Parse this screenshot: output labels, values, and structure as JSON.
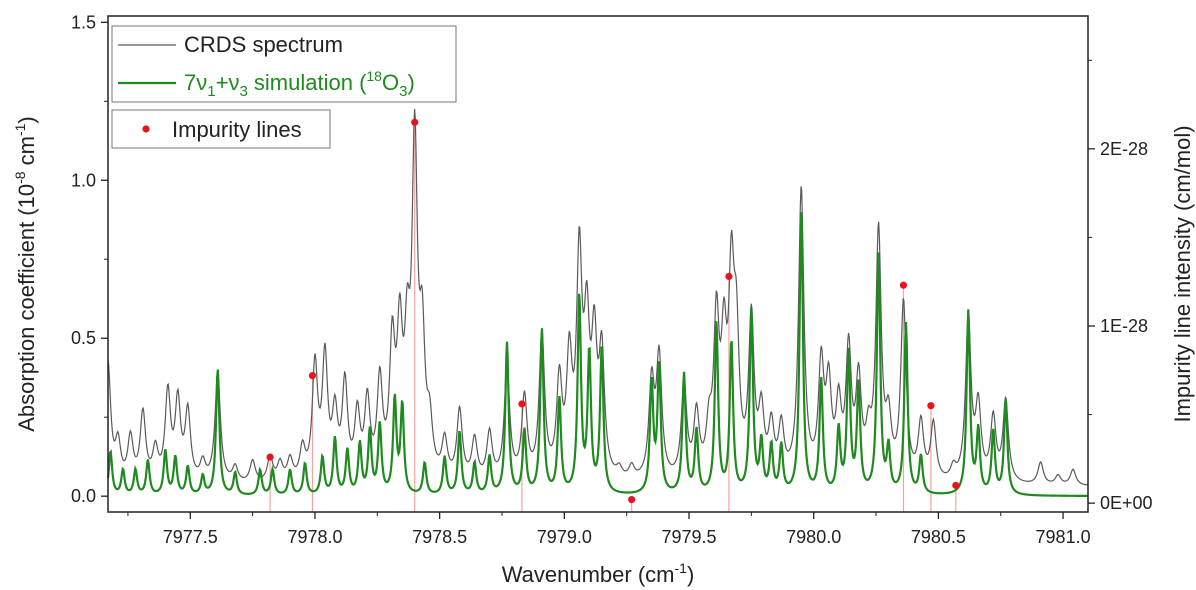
{
  "chart_data": {
    "type": "line",
    "xlabel": "Wavenumber (cm",
    "xlabel_sup": "-1",
    "xlabel_end": ")",
    "ylabel": "Absorption coefficient (10",
    "ylabel_sup1": "-8",
    "ylabel_mid": " cm",
    "ylabel_sup2": "-1",
    "ylabel_end": ")",
    "y2label": "Impurity line intensity (cm/mol)",
    "xlim": [
      7977.17,
      7981.1
    ],
    "ylim": [
      -0.05,
      1.52
    ],
    "y2lim": [
      -5e-30,
      2.75e-28
    ],
    "xticks": [
      7977.5,
      7978.0,
      7978.5,
      7979.0,
      7979.5,
      7980.0,
      7980.5,
      7981.0
    ],
    "xtick_labels": [
      "7977.5",
      "7978.0",
      "7978.5",
      "7979.0",
      "7979.5",
      "7980.0",
      "7980.5",
      "7981.0"
    ],
    "yticks": [
      0.0,
      0.5,
      1.0,
      1.5
    ],
    "ytick_labels": [
      "0.0",
      "0.5",
      "1.0",
      "1.5"
    ],
    "y2ticks": [
      0,
      1e-28,
      2e-28
    ],
    "y2tick_labels": [
      "0E+00",
      "1E-28",
      "2E-28"
    ],
    "colors": {
      "crds": "#5a5a5a",
      "simulation": "#1f8a1f",
      "impurity": "#e8141b",
      "stick": "#f4a3a3"
    },
    "grid": false,
    "legend": [
      {
        "label": "CRDS spectrum",
        "kind": "line",
        "color": "#5a5a5a"
      },
      {
        "label_parts": [
          "7ν",
          "1",
          "+ν",
          "3",
          " simulation (",
          "18",
          "O",
          "3",
          ")"
        ],
        "kind": "line",
        "color": "#1f8a1f"
      },
      {
        "label": "Impurity lines",
        "kind": "dot",
        "color": "#e8141b"
      }
    ],
    "legend_position": "top-left",
    "series": [
      {
        "name": "CRDS spectrum",
        "baseline": 0.03,
        "width": 0.013,
        "peaks": [
          [
            7977.17,
            0.38
          ],
          [
            7977.21,
            0.12
          ],
          [
            7977.26,
            0.14
          ],
          [
            7977.31,
            0.22
          ],
          [
            7977.36,
            0.1
          ],
          [
            7977.41,
            0.28
          ],
          [
            7977.45,
            0.25
          ],
          [
            7977.49,
            0.22
          ],
          [
            7977.55,
            0.06
          ],
          [
            7977.61,
            0.35
          ],
          [
            7977.68,
            0.05
          ],
          [
            7977.75,
            0.07
          ],
          [
            7977.82,
            0.08
          ],
          [
            7977.86,
            0.06
          ],
          [
            7977.9,
            0.07
          ],
          [
            7977.95,
            0.1
          ],
          [
            7978.0,
            0.36
          ],
          [
            7978.04,
            0.38
          ],
          [
            7978.08,
            0.2
          ],
          [
            7978.12,
            0.3
          ],
          [
            7978.17,
            0.2
          ],
          [
            7978.21,
            0.24
          ],
          [
            7978.26,
            0.3
          ],
          [
            7978.31,
            0.4
          ],
          [
            7978.34,
            0.42
          ],
          [
            7978.37,
            0.36
          ],
          [
            7978.4,
            1.03
          ],
          [
            7978.43,
            0.4
          ],
          [
            7978.46,
            0.15
          ],
          [
            7978.52,
            0.12
          ],
          [
            7978.58,
            0.22
          ],
          [
            7978.64,
            0.13
          ],
          [
            7978.7,
            0.15
          ],
          [
            7978.77,
            0.36
          ],
          [
            7978.84,
            0.26
          ],
          [
            7978.91,
            0.46
          ],
          [
            7978.98,
            0.3
          ],
          [
            7979.02,
            0.36
          ],
          [
            7979.06,
            0.68
          ],
          [
            7979.09,
            0.44
          ],
          [
            7979.12,
            0.4
          ],
          [
            7979.15,
            0.38
          ],
          [
            7979.22,
            0.03
          ],
          [
            7979.27,
            0.04
          ],
          [
            7979.35,
            0.3
          ],
          [
            7979.38,
            0.38
          ],
          [
            7979.48,
            0.3
          ],
          [
            7979.53,
            0.2
          ],
          [
            7979.58,
            0.14
          ],
          [
            7979.61,
            0.48
          ],
          [
            7979.64,
            0.38
          ],
          [
            7979.67,
            0.58
          ],
          [
            7979.69,
            0.4
          ],
          [
            7979.75,
            0.5
          ],
          [
            7979.79,
            0.2
          ],
          [
            7979.83,
            0.16
          ],
          [
            7979.87,
            0.16
          ],
          [
            7979.95,
            0.92
          ],
          [
            7980.03,
            0.35
          ],
          [
            7980.06,
            0.28
          ],
          [
            7980.1,
            0.22
          ],
          [
            7980.14,
            0.4
          ],
          [
            7980.18,
            0.3
          ],
          [
            7980.22,
            0.12
          ],
          [
            7980.26,
            0.78
          ],
          [
            7980.3,
            0.17
          ],
          [
            7980.36,
            0.56
          ],
          [
            7980.43,
            0.18
          ],
          [
            7980.48,
            0.18
          ],
          [
            7980.56,
            0.04
          ],
          [
            7980.62,
            0.52
          ],
          [
            7980.66,
            0.23
          ],
          [
            7980.72,
            0.2
          ],
          [
            7980.77,
            0.26
          ],
          [
            7980.91,
            0.07
          ],
          [
            7980.98,
            0.03
          ],
          [
            7981.04,
            0.05
          ]
        ]
      },
      {
        "name": "7ν1+ν3 simulation (18O3)",
        "baseline": 0.0,
        "width": 0.008,
        "peaks": [
          [
            7977.18,
            0.14
          ],
          [
            7977.23,
            0.08
          ],
          [
            7977.28,
            0.08
          ],
          [
            7977.33,
            0.11
          ],
          [
            7977.4,
            0.14
          ],
          [
            7977.44,
            0.12
          ],
          [
            7977.49,
            0.09
          ],
          [
            7977.55,
            0.06
          ],
          [
            7977.61,
            0.4
          ],
          [
            7977.68,
            0.07
          ],
          [
            7977.78,
            0.08
          ],
          [
            7977.83,
            0.08
          ],
          [
            7977.9,
            0.08
          ],
          [
            7977.96,
            0.1
          ],
          [
            7978.03,
            0.12
          ],
          [
            7978.08,
            0.18
          ],
          [
            7978.13,
            0.14
          ],
          [
            7978.18,
            0.16
          ],
          [
            7978.22,
            0.2
          ],
          [
            7978.26,
            0.22
          ],
          [
            7978.32,
            0.3
          ],
          [
            7978.35,
            0.28
          ],
          [
            7978.44,
            0.1
          ],
          [
            7978.52,
            0.12
          ],
          [
            7978.58,
            0.2
          ],
          [
            7978.64,
            0.1
          ],
          [
            7978.7,
            0.12
          ],
          [
            7978.77,
            0.48
          ],
          [
            7978.84,
            0.2
          ],
          [
            7978.91,
            0.52
          ],
          [
            7978.98,
            0.3
          ],
          [
            7979.06,
            0.62
          ],
          [
            7979.1,
            0.44
          ],
          [
            7979.15,
            0.46
          ],
          [
            7979.35,
            0.35
          ],
          [
            7979.38,
            0.4
          ],
          [
            7979.48,
            0.38
          ],
          [
            7979.53,
            0.2
          ],
          [
            7979.61,
            0.54
          ],
          [
            7979.67,
            0.48
          ],
          [
            7979.75,
            0.58
          ],
          [
            7979.79,
            0.16
          ],
          [
            7979.83,
            0.15
          ],
          [
            7979.87,
            0.15
          ],
          [
            7979.95,
            0.9
          ],
          [
            7980.03,
            0.36
          ],
          [
            7980.1,
            0.2
          ],
          [
            7980.14,
            0.44
          ],
          [
            7980.18,
            0.34
          ],
          [
            7980.26,
            0.76
          ],
          [
            7980.3,
            0.14
          ],
          [
            7980.37,
            0.54
          ],
          [
            7980.43,
            0.12
          ],
          [
            7980.62,
            0.58
          ],
          [
            7980.66,
            0.2
          ],
          [
            7980.72,
            0.2
          ],
          [
            7980.77,
            0.3
          ]
        ]
      }
    ],
    "impurity_lines": [
      {
        "x": 7977.82,
        "intensity": 2.6e-29
      },
      {
        "x": 7977.99,
        "intensity": 7.2e-29
      },
      {
        "x": 7978.4,
        "intensity": 2.15e-28
      },
      {
        "x": 7978.83,
        "intensity": 5.6e-29
      },
      {
        "x": 7979.27,
        "intensity": 2e-30
      },
      {
        "x": 7979.66,
        "intensity": 1.28e-28
      },
      {
        "x": 7980.36,
        "intensity": 1.23e-28
      },
      {
        "x": 7980.47,
        "intensity": 5.5e-29
      },
      {
        "x": 7980.57,
        "intensity": 1e-29
      }
    ]
  }
}
